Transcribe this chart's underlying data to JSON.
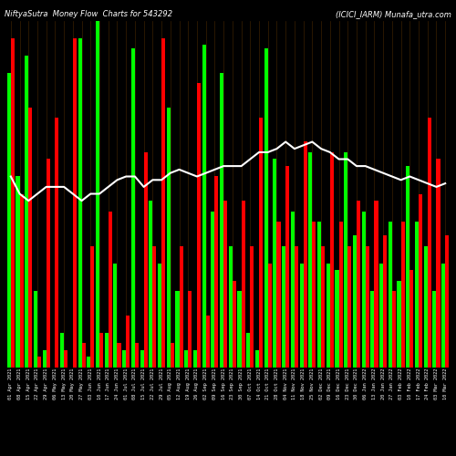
{
  "title_left": "NiftyaSutra  Money Flow  Charts for 543292",
  "title_right": "(ICICI_IARM) Munafa_utra.com",
  "background_color": "#000000",
  "categories": [
    "01 Apr 2021",
    "08 Apr 2021",
    "15 Apr 2021",
    "22 Apr 2021",
    "29 Apr 2021",
    "06 May 2021",
    "13 May 2021",
    "20 May 2021",
    "27 May 2021",
    "03 Jun 2021",
    "10 Jun 2021",
    "17 Jun 2021",
    "24 Jun 2021",
    "01 Jul 2021",
    "08 Jul 2021",
    "15 Jul 2021",
    "22 Jul 2021",
    "29 Jul 2021",
    "05 Aug 2021",
    "12 Aug 2021",
    "19 Aug 2021",
    "26 Aug 2021",
    "02 Sep 2021",
    "09 Sep 2021",
    "16 Sep 2021",
    "23 Sep 2021",
    "30 Sep 2021",
    "07 Oct 2021",
    "14 Oct 2021",
    "21 Oct 2021",
    "28 Oct 2021",
    "04 Nov 2021",
    "11 Nov 2021",
    "18 Nov 2021",
    "25 Nov 2021",
    "02 Dec 2021",
    "09 Dec 2021",
    "16 Dec 2021",
    "23 Dec 2021",
    "30 Dec 2021",
    "06 Jan 2022",
    "13 Jan 2022",
    "20 Jan 2022",
    "27 Jan 2022",
    "03 Feb 2022",
    "10 Feb 2022",
    "17 Feb 2022",
    "24 Feb 2022",
    "03 Mar 2022",
    "10 Mar 2022"
  ],
  "green_bars": [
    85,
    55,
    90,
    22,
    5,
    0,
    10,
    0,
    95,
    3,
    100,
    10,
    30,
    5,
    92,
    5,
    48,
    30,
    75,
    22,
    5,
    5,
    93,
    45,
    85,
    35,
    22,
    10,
    5,
    92,
    60,
    35,
    45,
    30,
    62,
    42,
    30,
    28,
    62,
    38,
    45,
    22,
    30,
    42,
    25,
    58,
    42,
    35,
    22,
    30
  ],
  "red_bars": [
    95,
    50,
    75,
    3,
    60,
    72,
    5,
    95,
    7,
    35,
    10,
    45,
    7,
    15,
    7,
    62,
    35,
    95,
    7,
    35,
    22,
    82,
    15,
    55,
    48,
    25,
    48,
    35,
    72,
    30,
    42,
    58,
    35,
    65,
    42,
    35,
    62,
    42,
    35,
    48,
    35,
    48,
    38,
    22,
    42,
    28,
    50,
    72,
    60,
    38
  ],
  "trend_line": [
    55,
    50,
    48,
    50,
    52,
    52,
    52,
    50,
    48,
    50,
    50,
    52,
    54,
    55,
    55,
    52,
    54,
    54,
    56,
    57,
    56,
    55,
    56,
    57,
    58,
    58,
    58,
    60,
    62,
    62,
    63,
    65,
    63,
    64,
    65,
    63,
    62,
    60,
    60,
    58,
    58,
    57,
    56,
    55,
    54,
    55,
    54,
    53,
    52,
    53
  ],
  "green_color": "#00ff00",
  "red_color": "#ff0000",
  "line_color": "#ffffff",
  "text_color": "#ffffff",
  "title_fontsize": 6.0,
  "tick_fontsize": 3.8,
  "ylim_max": 100
}
